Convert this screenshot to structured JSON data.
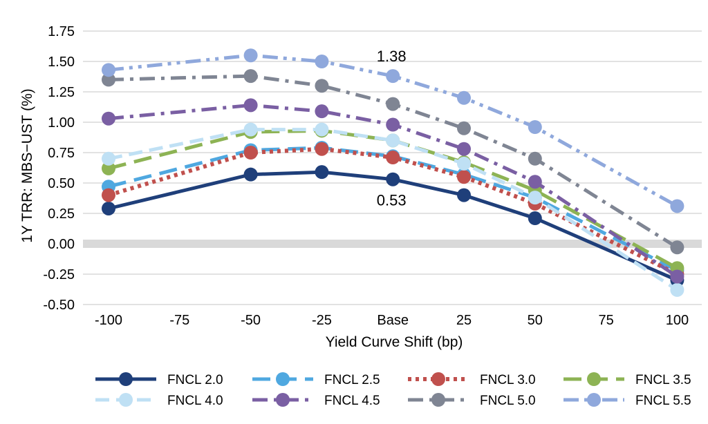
{
  "chart_data": {
    "type": "line",
    "title": "",
    "xlabel": "Yield Curve Shift (bp)",
    "ylabel": "1Y TRR: MBS−UST (%)",
    "categories": [
      "-100",
      "-75",
      "-50",
      "-25",
      "Base",
      "25",
      "50",
      "75",
      "100"
    ],
    "x": [
      -100,
      -75,
      -50,
      -25,
      0,
      25,
      50,
      75,
      100
    ],
    "ylim": [
      -0.5,
      1.75
    ],
    "yticks": [
      "1.75",
      "1.50",
      "1.25",
      "1.00",
      "0.75",
      "0.50",
      "0.25",
      "0.00",
      "-0.25",
      "-0.50"
    ],
    "ytick_values": [
      1.75,
      1.5,
      1.25,
      1.0,
      0.75,
      0.5,
      0.25,
      0.0,
      -0.25,
      -0.5
    ],
    "grid": true,
    "legend_position": "bottom",
    "series": [
      {
        "name": "FNCL 2.0",
        "color": "#1f3f7a",
        "dash": "solid",
        "x": [
          -100,
          -50,
          -25,
          0,
          25,
          50,
          100
        ],
        "values": [
          0.29,
          0.57,
          0.59,
          0.53,
          0.4,
          0.21,
          -0.3
        ]
      },
      {
        "name": "FNCL 2.5",
        "color": "#4fa8e0",
        "dash": "long-dash",
        "x": [
          -100,
          -50,
          -25,
          0,
          25,
          50,
          100
        ],
        "values": [
          0.47,
          0.77,
          0.79,
          0.72,
          0.57,
          0.38,
          -0.22
        ]
      },
      {
        "name": "FNCL 3.0",
        "color": "#c0504d",
        "dash": "dotted",
        "x": [
          -100,
          -50,
          -25,
          0,
          25,
          50,
          100
        ],
        "values": [
          0.4,
          0.75,
          0.78,
          0.71,
          0.55,
          0.33,
          -0.25
        ]
      },
      {
        "name": "FNCL 3.5",
        "color": "#8db354",
        "dash": "long-dash",
        "x": [
          -100,
          -50,
          -25,
          0,
          25,
          50,
          100
        ],
        "values": [
          0.62,
          0.92,
          0.93,
          0.85,
          0.67,
          0.44,
          -0.2
        ]
      },
      {
        "name": "FNCL 4.0",
        "color": "#bfe0f4",
        "dash": "dash",
        "x": [
          -100,
          -50,
          -25,
          0,
          25,
          50,
          100
        ],
        "values": [
          0.7,
          0.94,
          0.94,
          0.85,
          0.66,
          0.38,
          -0.38
        ]
      },
      {
        "name": "FNCL 4.5",
        "color": "#7a5fa3",
        "dash": "dash-dot",
        "x": [
          -100,
          -50,
          -25,
          0,
          25,
          50,
          100
        ],
        "values": [
          1.03,
          1.14,
          1.09,
          0.98,
          0.78,
          0.51,
          -0.27
        ]
      },
      {
        "name": "FNCL 5.0",
        "color": "#7f8593",
        "dash": "dash-dot",
        "x": [
          -100,
          -50,
          -25,
          0,
          25,
          50,
          100
        ],
        "values": [
          1.35,
          1.38,
          1.3,
          1.15,
          0.95,
          0.7,
          -0.03
        ]
      },
      {
        "name": "FNCL 5.5",
        "color": "#8fa8dc",
        "dash": "dash-dot-dot",
        "x": [
          -100,
          -50,
          -25,
          0,
          25,
          50,
          100
        ],
        "values": [
          1.43,
          1.55,
          1.5,
          1.38,
          1.2,
          0.96,
          0.31
        ]
      }
    ],
    "annotations": [
      {
        "text": "1.38",
        "series": "FNCL 5.5",
        "x": 0,
        "y": 1.38
      },
      {
        "text": "0.53",
        "series": "FNCL 2.0",
        "x": 0,
        "y": 0.53
      }
    ]
  }
}
